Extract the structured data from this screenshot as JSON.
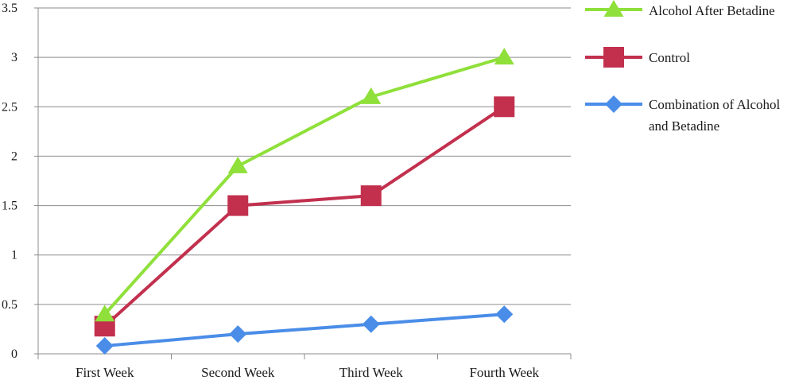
{
  "chart_data": {
    "type": "line",
    "categories": [
      "First Week",
      "Second Week",
      "Third Week",
      "Fourth Week"
    ],
    "series": [
      {
        "name": "Alcohol After Betadine",
        "values": [
          0.4,
          1.9,
          2.6,
          3.0
        ],
        "color": "#8FE03A",
        "marker": "triangle"
      },
      {
        "name": "Control",
        "values": [
          0.28,
          1.5,
          1.6,
          2.5
        ],
        "color": "#C2304E",
        "marker": "square"
      },
      {
        "name": "Combination of Alcohol and Betadine",
        "values": [
          0.08,
          0.2,
          0.3,
          0.4
        ],
        "color": "#4A8DE8",
        "marker": "diamond"
      }
    ],
    "yticks": [
      "0",
      "0.5",
      "1",
      "1.5",
      "2",
      "2.5",
      "3",
      "3.5"
    ],
    "ylim": [
      0,
      3.5
    ],
    "grid": true,
    "legend": "right"
  }
}
